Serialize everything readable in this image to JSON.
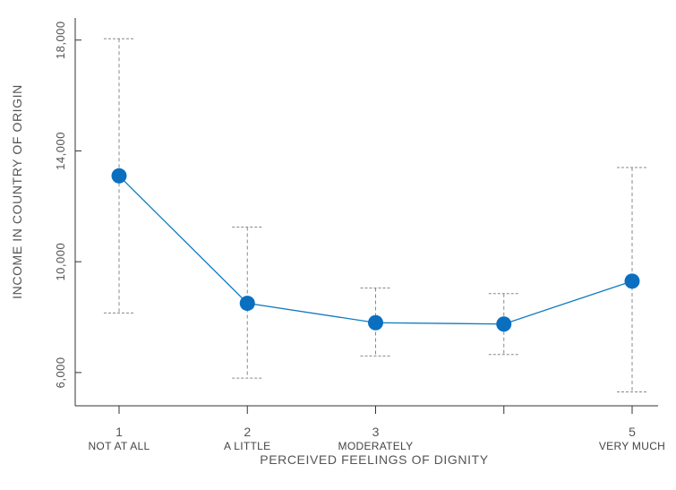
{
  "chart_data": {
    "type": "line",
    "title": "",
    "xlabel": "PERCEIVED FEELINGS OF DIGNITY",
    "ylabel": "INCOME IN COUNTRY OF ORIGIN",
    "ylim": [
      4800,
      18800
    ],
    "yticks": [
      6000,
      10000,
      14000,
      18000
    ],
    "ytick_labels": [
      "6,000",
      "10,000",
      "14,000",
      "18,000"
    ],
    "grid": false,
    "legend": "none",
    "categories": [
      {
        "x": 1,
        "num": "1",
        "label": "NOT AT ALL"
      },
      {
        "x": 2,
        "num": "2",
        "label": "A LITTLE"
      },
      {
        "x": 3,
        "num": "3",
        "label": "MODERATELY"
      },
      {
        "x": 4,
        "num": "",
        "label": ""
      },
      {
        "x": 5,
        "num": "5",
        "label": "VERY MUCH"
      }
    ],
    "series": [
      {
        "points": [
          {
            "x": 1,
            "y": 13100,
            "low": 8150,
            "high": 18050
          },
          {
            "x": 2,
            "y": 8500,
            "low": 5800,
            "high": 11250
          },
          {
            "x": 3,
            "y": 7800,
            "low": 6600,
            "high": 9050
          },
          {
            "x": 4,
            "y": 7750,
            "low": 6650,
            "high": 8850
          },
          {
            "x": 5,
            "y": 9300,
            "low": 5300,
            "high": 13400
          }
        ]
      }
    ],
    "colors": {
      "line": "#0e7bbf",
      "marker": "#0b6fc0",
      "error_bar": "#888888"
    }
  }
}
